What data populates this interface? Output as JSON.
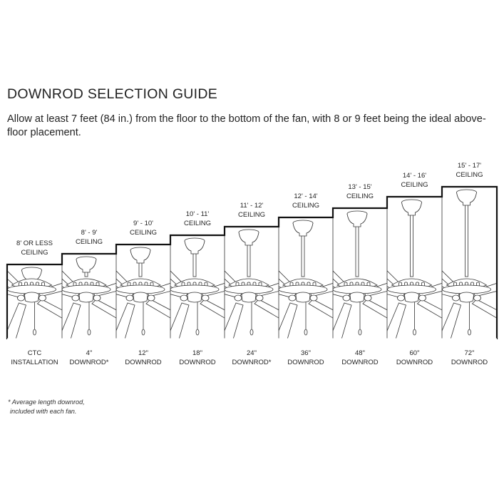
{
  "title": "DOWNROD SELECTION GUIDE",
  "intro": "Allow at least 7 feet (84 in.) from the floor to the bottom of the fan, with 8 or 9 feet being the ideal above-floor placement.",
  "columns": [
    {
      "ceiling": "8' OR LESS CEILING",
      "downrod_length": "CTC",
      "downrod_note": "INSTALLATION"
    },
    {
      "ceiling": "8' - 9' CEILING",
      "downrod_length": "4\"",
      "downrod_note": "DOWNROD*"
    },
    {
      "ceiling": "9' - 10' CEILING",
      "downrod_length": "12\"",
      "downrod_note": "DOWNROD"
    },
    {
      "ceiling": "10' - 11' CEILING",
      "downrod_length": "18\"",
      "downrod_note": "DOWNROD"
    },
    {
      "ceiling": "11' - 12' CEILING",
      "downrod_length": "24\"",
      "downrod_note": "DOWNROD*"
    },
    {
      "ceiling": "12' - 14' CEILING",
      "downrod_length": "36\"",
      "downrod_note": "DOWNROD"
    },
    {
      "ceiling": "13' - 15' CEILING",
      "downrod_length": "48\"",
      "downrod_note": "DOWNROD"
    },
    {
      "ceiling": "14' - 16' CEILING",
      "downrod_length": "60\"",
      "downrod_note": "DOWNROD"
    },
    {
      "ceiling": "15' - 17' CEILING",
      "downrod_length": "72\"",
      "downrod_note": "DOWNROD"
    }
  ],
  "footnote_line1": "* Average length downrod,",
  "footnote_line2": "included with each fan."
}
